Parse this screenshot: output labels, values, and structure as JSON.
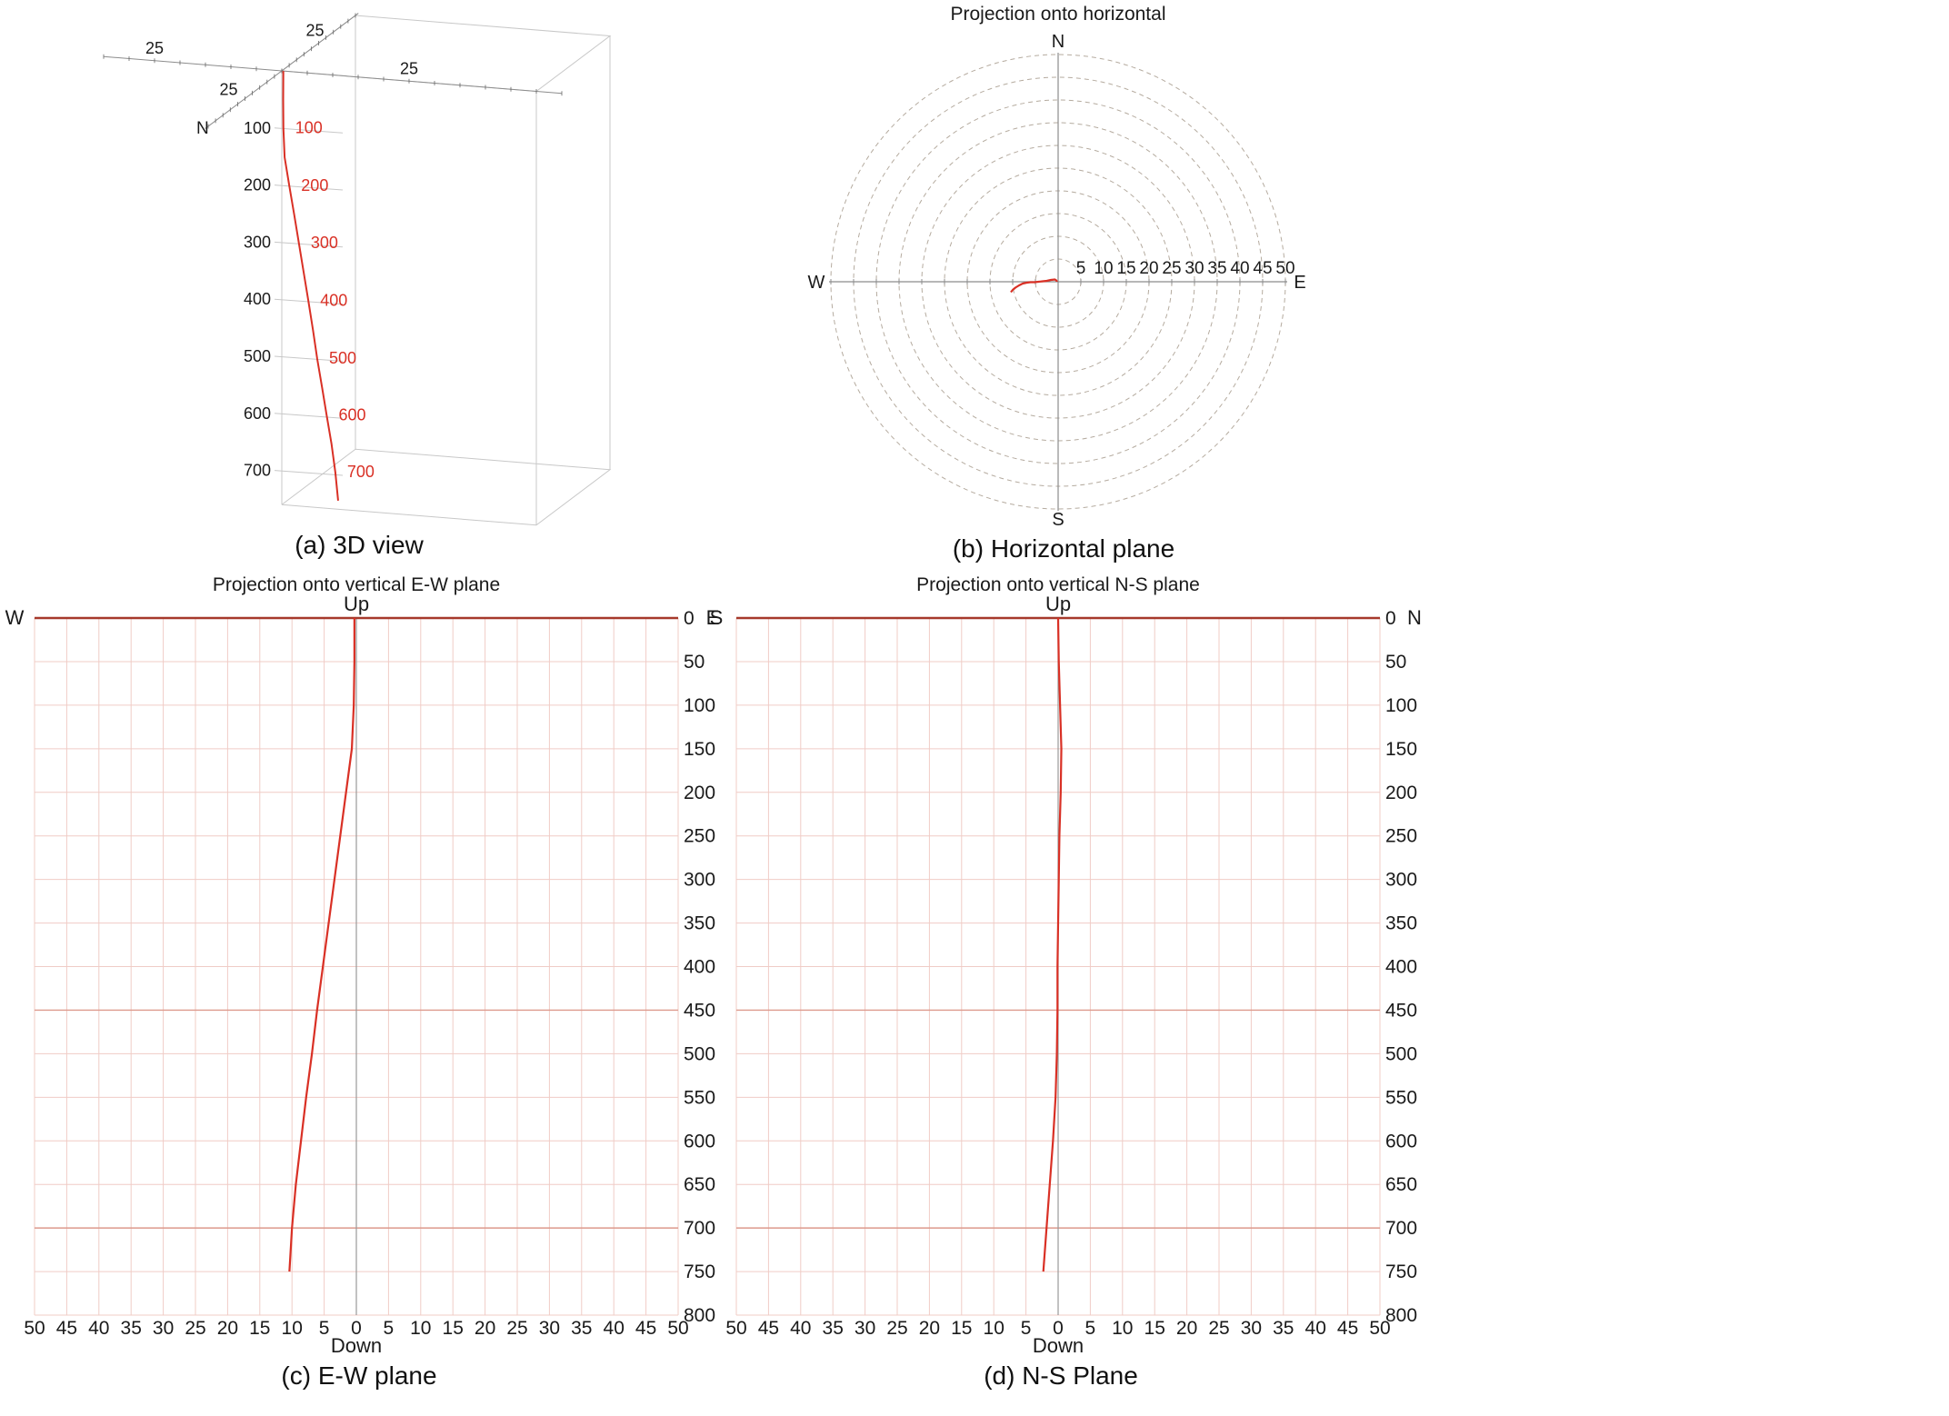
{
  "colors": {
    "trajectory": "#d93025",
    "grid": "#f0ccc6",
    "grid_emphasis": "#dd9a8d",
    "axis_dark_red": "#a6392b",
    "axis_gray": "#8c8c8c",
    "center_axis_gray": "#9a9a9a",
    "box_gray": "#c8c8c8",
    "ring": "#b5ab9f",
    "text": "#1a1a1a",
    "depth_label_red": "#d93025"
  },
  "chart_data": [
    {
      "id": "view3d",
      "type": "line3d",
      "caption": "(a) 3D view",
      "north_label": "N",
      "axis_tick_labels": {
        "east": "25",
        "west": "25",
        "north": "25",
        "south": "25"
      },
      "depth_axis_labels": [
        100,
        200,
        300,
        400,
        500,
        600,
        700
      ],
      "path_depth_labels": [
        100,
        200,
        300,
        400,
        500,
        600,
        700
      ],
      "box": {
        "west_extent": [
          0,
          50
        ],
        "south_extent": [
          0,
          50
        ],
        "depth_extent": [
          0,
          760
        ]
      },
      "series": {
        "name": "borehole-trajectory",
        "stations": [
          {
            "depth": 0,
            "east": -0.3,
            "north": 0.0
          },
          {
            "depth": 50,
            "east": -0.3,
            "north": 0.1
          },
          {
            "depth": 100,
            "east": -0.4,
            "north": 0.3
          },
          {
            "depth": 150,
            "east": -0.7,
            "north": 0.5
          },
          {
            "depth": 200,
            "east": -1.6,
            "north": 0.4
          },
          {
            "depth": 250,
            "east": -2.5,
            "north": 0.2
          },
          {
            "depth": 300,
            "east": -3.4,
            "north": 0.1
          },
          {
            "depth": 350,
            "east": -4.3,
            "north": 0.0
          },
          {
            "depth": 400,
            "east": -5.2,
            "north": -0.1
          },
          {
            "depth": 450,
            "east": -6.1,
            "north": -0.1
          },
          {
            "depth": 500,
            "east": -6.9,
            "north": -0.2
          },
          {
            "depth": 550,
            "east": -7.8,
            "north": -0.4
          },
          {
            "depth": 600,
            "east": -8.6,
            "north": -0.8
          },
          {
            "depth": 650,
            "east": -9.4,
            "north": -1.3
          },
          {
            "depth": 700,
            "east": -10.0,
            "north": -1.8
          },
          {
            "depth": 750,
            "east": -10.4,
            "north": -2.3
          }
        ]
      }
    },
    {
      "id": "horizontal",
      "type": "polar",
      "title": "Projection onto horizontal",
      "caption": "(b) Horizontal plane",
      "compass": {
        "north": "N",
        "east": "E",
        "south": "S",
        "west": "W"
      },
      "ring_radii": [
        5,
        10,
        15,
        20,
        25,
        30,
        35,
        40,
        45,
        50
      ],
      "radius_tick_labels": [
        5,
        10,
        15,
        20,
        25,
        30,
        35,
        40,
        45,
        50
      ],
      "rlim": [
        0,
        50
      ],
      "series": {
        "name": "borehole-trajectory",
        "points": [
          {
            "east": -0.3,
            "north": 0.0
          },
          {
            "east": -0.3,
            "north": 0.1
          },
          {
            "east": -0.4,
            "north": 0.3
          },
          {
            "east": -0.7,
            "north": 0.5
          },
          {
            "east": -1.6,
            "north": 0.4
          },
          {
            "east": -2.5,
            "north": 0.2
          },
          {
            "east": -3.4,
            "north": 0.1
          },
          {
            "east": -4.3,
            "north": 0.0
          },
          {
            "east": -5.2,
            "north": -0.1
          },
          {
            "east": -6.1,
            "north": -0.1
          },
          {
            "east": -6.9,
            "north": -0.2
          },
          {
            "east": -7.8,
            "north": -0.4
          },
          {
            "east": -8.6,
            "north": -0.8
          },
          {
            "east": -9.4,
            "north": -1.3
          },
          {
            "east": -10.0,
            "north": -1.8
          },
          {
            "east": -10.4,
            "north": -2.3
          }
        ]
      }
    },
    {
      "id": "ew_section",
      "type": "section",
      "title": "Projection onto vertical E-W plane",
      "caption": "(c) E-W plane",
      "top_label": "Up",
      "bottom_label": "Down",
      "left_label": "W",
      "right_corner_label": "E",
      "x_tick_labels": [
        50,
        45,
        40,
        35,
        30,
        25,
        20,
        15,
        10,
        5,
        0,
        5,
        10,
        15,
        20,
        25,
        30,
        35,
        40,
        45,
        50
      ],
      "xlim": [
        -50,
        50
      ],
      "depth_tick_labels": [
        0,
        50,
        100,
        150,
        200,
        250,
        300,
        350,
        400,
        450,
        500,
        550,
        600,
        650,
        700,
        750,
        800
      ],
      "ylim": [
        0,
        800
      ],
      "emphasis_depths": [
        450,
        700
      ],
      "series": {
        "name": "borehole-trajectory",
        "points": [
          {
            "depth": 0,
            "offset": -0.3
          },
          {
            "depth": 50,
            "offset": -0.3
          },
          {
            "depth": 100,
            "offset": -0.4
          },
          {
            "depth": 150,
            "offset": -0.7
          },
          {
            "depth": 200,
            "offset": -1.6
          },
          {
            "depth": 250,
            "offset": -2.5
          },
          {
            "depth": 300,
            "offset": -3.4
          },
          {
            "depth": 350,
            "offset": -4.3
          },
          {
            "depth": 400,
            "offset": -5.2
          },
          {
            "depth": 450,
            "offset": -6.1
          },
          {
            "depth": 500,
            "offset": -6.9
          },
          {
            "depth": 550,
            "offset": -7.8
          },
          {
            "depth": 600,
            "offset": -8.6
          },
          {
            "depth": 650,
            "offset": -9.4
          },
          {
            "depth": 700,
            "offset": -10.0
          },
          {
            "depth": 750,
            "offset": -10.4
          }
        ]
      }
    },
    {
      "id": "ns_section",
      "type": "section",
      "title": "Projection onto vertical N-S plane",
      "caption": "(d) N-S Plane",
      "top_label": "Up",
      "bottom_label": "Down",
      "left_label": "S",
      "right_corner_label": "N",
      "x_tick_labels": [
        50,
        45,
        40,
        35,
        30,
        25,
        20,
        15,
        10,
        5,
        0,
        5,
        10,
        15,
        20,
        25,
        30,
        35,
        40,
        45,
        50
      ],
      "xlim": [
        -50,
        50
      ],
      "depth_tick_labels": [
        0,
        50,
        100,
        150,
        200,
        250,
        300,
        350,
        400,
        450,
        500,
        550,
        600,
        650,
        700,
        750,
        800
      ],
      "ylim": [
        0,
        800
      ],
      "emphasis_depths": [
        450,
        700
      ],
      "series": {
        "name": "borehole-trajectory",
        "points": [
          {
            "depth": 0,
            "offset": 0.0
          },
          {
            "depth": 50,
            "offset": 0.1
          },
          {
            "depth": 100,
            "offset": 0.3
          },
          {
            "depth": 150,
            "offset": 0.5
          },
          {
            "depth": 200,
            "offset": 0.4
          },
          {
            "depth": 250,
            "offset": 0.2
          },
          {
            "depth": 300,
            "offset": 0.1
          },
          {
            "depth": 350,
            "offset": 0.0
          },
          {
            "depth": 400,
            "offset": -0.1
          },
          {
            "depth": 450,
            "offset": -0.1
          },
          {
            "depth": 500,
            "offset": -0.2
          },
          {
            "depth": 550,
            "offset": -0.4
          },
          {
            "depth": 600,
            "offset": -0.8
          },
          {
            "depth": 650,
            "offset": -1.3
          },
          {
            "depth": 700,
            "offset": -1.8
          },
          {
            "depth": 750,
            "offset": -2.3
          }
        ]
      }
    }
  ]
}
